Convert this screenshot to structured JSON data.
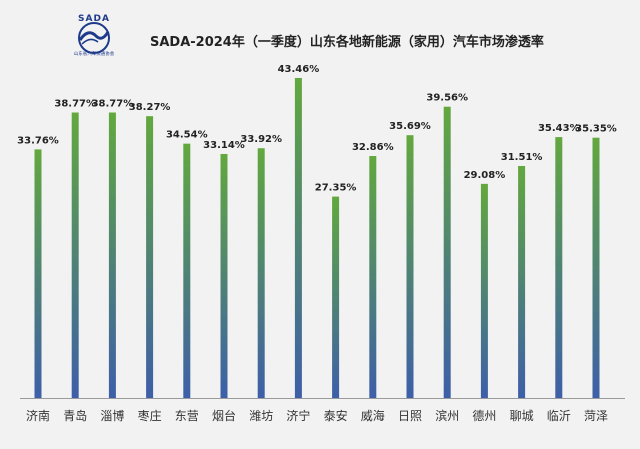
{
  "logo": {
    "text": "SADA",
    "subtext": "山东省汽车流通协会"
  },
  "chart_data": {
    "type": "bar",
    "title": "SADA-2024年（一季度）山东各地新能源（家用）汽车市场渗透率",
    "categories": [
      "济南",
      "青岛",
      "淄博",
      "枣庄",
      "东营",
      "烟台",
      "潍坊",
      "济宁",
      "泰安",
      "威海",
      "日照",
      "滨州",
      "德州",
      "聊城",
      "临沂",
      "菏泽"
    ],
    "values": [
      33.76,
      38.77,
      38.77,
      38.27,
      34.54,
      33.14,
      33.92,
      43.46,
      27.35,
      32.86,
      35.69,
      39.56,
      29.08,
      31.51,
      35.43,
      35.35
    ],
    "data_labels": [
      "33.76%",
      "38.77%",
      "38.77%",
      "38.27%",
      "34.54%",
      "33.14%",
      "33.92%",
      "43.46%",
      "27.35%",
      "32.86%",
      "35.69%",
      "39.56%",
      "29.08%",
      "31.51%",
      "35.43%",
      "35.35%"
    ],
    "ylim": [
      0,
      44
    ],
    "grid": false,
    "legend": "none",
    "colors": {
      "bar_top": "#62a83e",
      "bar_bottom": "#3d5fa8",
      "axis": "#9a9a9a"
    }
  }
}
